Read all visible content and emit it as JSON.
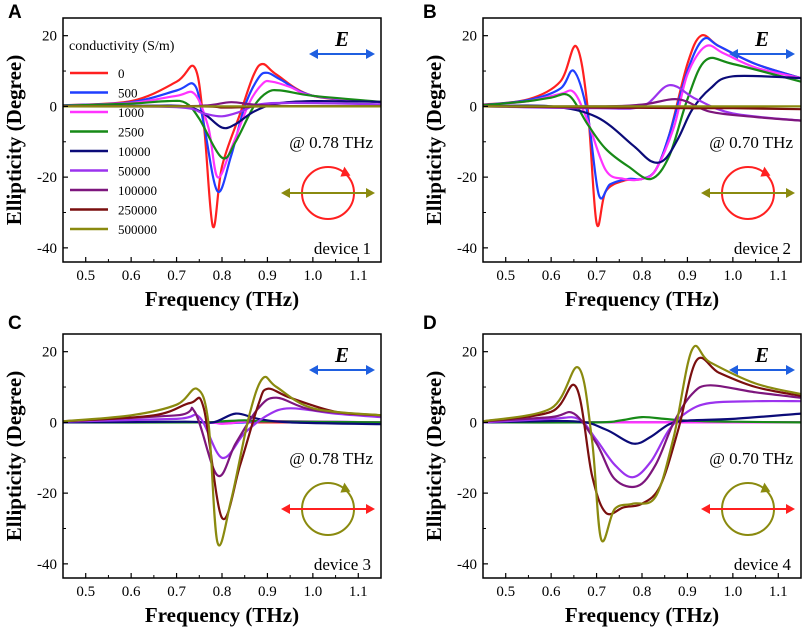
{
  "colors": {
    "0": "#ff2020",
    "500": "#1f3fff",
    "1000": "#ff33ff",
    "2500": "#178a17",
    "10000": "#0b0b78",
    "50000": "#9b33ee",
    "100000": "#7d167d",
    "250000": "#7a0f0f",
    "500000": "#8a8a0f",
    "e_arrow": "#1f5fe0",
    "pol_red": "#ff2020",
    "pol_olive": "#8a8a0f"
  },
  "legend": {
    "title": "conductivity (S/m)",
    "entries": [
      "0",
      "500",
      "1000",
      "2500",
      "10000",
      "50000",
      "100000",
      "250000",
      "500000"
    ]
  },
  "e_label": "E",
  "chart_data": [
    {
      "type": "line",
      "panel": "A",
      "xlabel": "Frequency (THz)",
      "ylabel": "Ellipticity (Degree)",
      "xlim": [
        0.45,
        1.15
      ],
      "ylim": [
        -44,
        25
      ],
      "xticks": [
        "0.5",
        "0.6",
        "0.7",
        "0.8",
        "0.9",
        "1.0",
        "1.1"
      ],
      "yticks": [
        "20",
        "0",
        "-20",
        "-40"
      ],
      "annotation": "@ 0.78 THz",
      "device_label": "device 1",
      "polarization": {
        "circle": "pol_red",
        "line": "pol_olive"
      },
      "series": [
        {
          "name": "0",
          "x": [
            0.45,
            0.6,
            0.7,
            0.74,
            0.76,
            0.78,
            0.8,
            0.84,
            0.87,
            0.89,
            0.92,
            1.0,
            1.15
          ],
          "y": [
            0.3,
            1.5,
            7,
            11,
            -5,
            -34,
            -17,
            -2,
            9,
            12,
            9,
            3,
            1.2
          ]
        },
        {
          "name": "500",
          "x": [
            0.45,
            0.6,
            0.7,
            0.74,
            0.76,
            0.79,
            0.82,
            0.85,
            0.88,
            0.9,
            0.93,
            1.0,
            1.15
          ],
          "y": [
            0.3,
            1.2,
            4.5,
            6,
            -5,
            -24,
            -14,
            0,
            8,
            9.5,
            7.5,
            3,
            1.2
          ]
        },
        {
          "name": "1000",
          "x": [
            0.45,
            0.6,
            0.7,
            0.74,
            0.77,
            0.79,
            0.82,
            0.86,
            0.89,
            0.91,
            0.95,
            1.0,
            1.15
          ],
          "y": [
            0.2,
            1,
            3,
            3.5,
            -6,
            -20,
            -12,
            1,
            6.5,
            7,
            5.5,
            3,
            1.2
          ]
        },
        {
          "name": "2500",
          "x": [
            0.45,
            0.6,
            0.68,
            0.72,
            0.75,
            0.8,
            0.83,
            0.87,
            0.9,
            0.93,
            1.0,
            1.15
          ],
          "y": [
            0.2,
            0.8,
            1.5,
            1,
            -3.5,
            -14.5,
            -10,
            0,
            4,
            4.5,
            3,
            1.3
          ]
        },
        {
          "name": "10000",
          "x": [
            0.45,
            0.65,
            0.72,
            0.76,
            0.8,
            0.83,
            0.87,
            0.92,
            1.0,
            1.15
          ],
          "y": [
            0,
            0.2,
            0,
            -2,
            -6,
            -5,
            -1.5,
            0.8,
            1.5,
            1.3
          ]
        },
        {
          "name": "50000",
          "x": [
            0.45,
            0.7,
            0.76,
            0.8,
            0.84,
            0.88,
            0.95,
            1.15
          ],
          "y": [
            0,
            -0.2,
            -2,
            -2.8,
            -1.5,
            0.5,
            1,
            0.6
          ]
        },
        {
          "name": "100000",
          "x": [
            0.45,
            0.7,
            0.77,
            0.82,
            0.87,
            0.95,
            1.15
          ],
          "y": [
            0,
            0,
            0.3,
            1.2,
            0.5,
            0.1,
            0
          ]
        },
        {
          "name": "250000",
          "x": [
            0.45,
            0.75,
            0.8,
            0.85,
            0.9,
            1.15
          ],
          "y": [
            0,
            0,
            -0.3,
            -0.2,
            0,
            0
          ]
        },
        {
          "name": "500000",
          "x": [
            0.45,
            0.8,
            1.15
          ],
          "y": [
            0,
            0,
            0
          ]
        }
      ]
    },
    {
      "type": "line",
      "panel": "B",
      "xlabel": "Frequency (THz)",
      "ylabel": "Ellipticity (Degree)",
      "xlim": [
        0.45,
        1.15
      ],
      "ylim": [
        -44,
        25
      ],
      "xticks": [
        "0.5",
        "0.6",
        "0.7",
        "0.8",
        "0.9",
        "1.0",
        "1.1"
      ],
      "yticks": [
        "20",
        "0",
        "-20",
        "-40"
      ],
      "annotation": "@ 0.70 THz",
      "device_label": "device 2",
      "polarization": {
        "circle": "pol_red",
        "line": "pol_olive"
      },
      "series": [
        {
          "name": "0",
          "x": [
            0.45,
            0.55,
            0.62,
            0.655,
            0.68,
            0.7,
            0.72,
            0.76,
            0.8,
            0.83,
            0.86,
            0.9,
            0.93,
            0.97,
            1.05,
            1.15
          ],
          "y": [
            0.5,
            2,
            7,
            17,
            0,
            -33,
            -24,
            -21,
            -20.5,
            -18,
            -8,
            12,
            20,
            17,
            12,
            8
          ]
        },
        {
          "name": "500",
          "x": [
            0.45,
            0.55,
            0.62,
            0.65,
            0.68,
            0.705,
            0.73,
            0.77,
            0.8,
            0.83,
            0.86,
            0.9,
            0.935,
            0.97,
            1.05,
            1.15
          ],
          "y": [
            0.4,
            1.8,
            5,
            10,
            -2,
            -25,
            -22,
            -20.5,
            -20.5,
            -18,
            -8,
            10,
            19,
            17,
            12,
            8
          ]
        },
        {
          "name": "1000",
          "x": [
            0.45,
            0.55,
            0.62,
            0.65,
            0.68,
            0.72,
            0.76,
            0.8,
            0.83,
            0.87,
            0.9,
            0.94,
            0.98,
            1.05,
            1.15
          ],
          "y": [
            0.3,
            1.5,
            3.5,
            4,
            -4,
            -18,
            -20.5,
            -20.5,
            -18,
            -6,
            9,
            17,
            15,
            11,
            8
          ]
        },
        {
          "name": "2500",
          "x": [
            0.45,
            0.55,
            0.6,
            0.64,
            0.68,
            0.72,
            0.77,
            0.82,
            0.86,
            0.9,
            0.94,
            1.0,
            1.15
          ],
          "y": [
            0.3,
            1.5,
            2.5,
            3,
            -5,
            -12,
            -17,
            -20.5,
            -14,
            2,
            13,
            12,
            7
          ]
        },
        {
          "name": "10000",
          "x": [
            0.45,
            0.6,
            0.7,
            0.78,
            0.82,
            0.85,
            0.88,
            0.91,
            0.95,
            1.0,
            1.15
          ],
          "y": [
            0,
            0,
            -3,
            -11,
            -15.5,
            -15,
            -9,
            -1,
            5,
            8.5,
            8
          ]
        },
        {
          "name": "50000",
          "x": [
            0.45,
            0.7,
            0.8,
            0.86,
            0.92,
            1.0,
            1.15
          ],
          "y": [
            0,
            -0.5,
            0,
            6,
            2,
            -2,
            -4
          ]
        },
        {
          "name": "100000",
          "x": [
            0.45,
            0.7,
            0.8,
            0.88,
            0.95,
            1.05,
            1.15
          ],
          "y": [
            0,
            0,
            0.5,
            2,
            -1.5,
            -3,
            -4
          ]
        },
        {
          "name": "250000",
          "x": [
            0.45,
            0.7,
            0.9,
            1.0,
            1.15
          ],
          "y": [
            0,
            -0.3,
            -0.5,
            -0.5,
            -0.8
          ]
        },
        {
          "name": "500000",
          "x": [
            0.45,
            0.8,
            1.15
          ],
          "y": [
            0,
            0,
            0
          ]
        }
      ]
    },
    {
      "type": "line",
      "panel": "C",
      "xlabel": "Frequency (THz)",
      "ylabel": "Ellipticity (Degree)",
      "xlim": [
        0.45,
        1.15
      ],
      "ylim": [
        -44,
        25
      ],
      "xticks": [
        "0.5",
        "0.6",
        "0.7",
        "0.8",
        "0.9",
        "1.0",
        "1.1"
      ],
      "yticks": [
        "20",
        "0",
        "-20",
        "-40"
      ],
      "annotation": "@ 0.78 THz",
      "device_label": "device 3",
      "polarization": {
        "circle": "pol_olive",
        "line": "pol_red"
      },
      "series": [
        {
          "name": "0",
          "x": [
            0.45,
            0.8,
            1.15
          ],
          "y": [
            0,
            0,
            0
          ]
        },
        {
          "name": "500",
          "x": [
            0.45,
            0.75,
            0.8,
            0.85,
            0.9,
            1.15
          ],
          "y": [
            0,
            0,
            -0.3,
            0,
            0.3,
            0
          ]
        },
        {
          "name": "1000",
          "x": [
            0.45,
            0.75,
            0.8,
            0.85,
            0.9,
            1.15
          ],
          "y": [
            0,
            0,
            -0.4,
            0.2,
            0.4,
            0
          ]
        },
        {
          "name": "2500",
          "x": [
            0.45,
            0.75,
            0.8,
            0.85,
            0.9,
            1.15
          ],
          "y": [
            0,
            0,
            0.3,
            0.6,
            0.3,
            0
          ]
        },
        {
          "name": "10000",
          "x": [
            0.45,
            0.72,
            0.78,
            0.83,
            0.88,
            0.95,
            1.15
          ],
          "y": [
            0,
            0.2,
            0,
            2.5,
            1,
            0,
            -0.5
          ]
        },
        {
          "name": "50000",
          "x": [
            0.45,
            0.7,
            0.75,
            0.8,
            0.85,
            0.9,
            0.95,
            1.05,
            1.15
          ],
          "y": [
            0.2,
            1,
            1.5,
            -10,
            -3,
            2,
            4,
            2.5,
            1.5
          ]
        },
        {
          "name": "100000",
          "x": [
            0.45,
            0.7,
            0.74,
            0.79,
            0.83,
            0.88,
            0.92,
            1.0,
            1.15
          ],
          "y": [
            0.3,
            2,
            3,
            -15,
            -6,
            4,
            7,
            3.5,
            2
          ]
        },
        {
          "name": "250000",
          "x": [
            0.45,
            0.65,
            0.73,
            0.76,
            0.8,
            0.84,
            0.88,
            0.9,
            0.95,
            1.05,
            1.15
          ],
          "y": [
            0.3,
            2,
            5.5,
            4,
            -27,
            -12,
            5,
            9.5,
            7,
            3,
            2
          ]
        },
        {
          "name": "500000",
          "x": [
            0.45,
            0.6,
            0.7,
            0.745,
            0.77,
            0.79,
            0.82,
            0.86,
            0.89,
            0.92,
            1.0,
            1.15
          ],
          "y": [
            0.3,
            2,
            5,
            9.5,
            0,
            -34,
            -22,
            2,
            12.5,
            10,
            4,
            2
          ]
        }
      ]
    },
    {
      "type": "line",
      "panel": "D",
      "xlabel": "Frequency (THz)",
      "ylabel": "Ellipticity (Degree)",
      "xlim": [
        0.45,
        1.15
      ],
      "ylim": [
        -44,
        25
      ],
      "xticks": [
        "0.5",
        "0.6",
        "0.7",
        "0.8",
        "0.9",
        "1.0",
        "1.1"
      ],
      "yticks": [
        "20",
        "0",
        "-20",
        "-40"
      ],
      "annotation": "@ 0.70 THz",
      "device_label": "device 4",
      "polarization": {
        "circle": "pol_olive",
        "line": "pol_red"
      },
      "series": [
        {
          "name": "0",
          "x": [
            0.45,
            0.8,
            1.15
          ],
          "y": [
            0,
            0,
            0
          ]
        },
        {
          "name": "500",
          "x": [
            0.45,
            0.8,
            1.15
          ],
          "y": [
            0,
            0,
            0
          ]
        },
        {
          "name": "1000",
          "x": [
            0.45,
            0.8,
            1.15
          ],
          "y": [
            0,
            0,
            0
          ]
        },
        {
          "name": "2500",
          "x": [
            0.45,
            0.7,
            0.75,
            0.8,
            0.85,
            0.9,
            1.0,
            1.15
          ],
          "y": [
            0,
            0,
            0.5,
            1.5,
            1,
            0.5,
            0.2,
            0
          ]
        },
        {
          "name": "10000",
          "x": [
            0.45,
            0.65,
            0.72,
            0.78,
            0.82,
            0.86,
            0.9,
            1.0,
            1.15
          ],
          "y": [
            0,
            0.3,
            -2,
            -6,
            -4,
            -0.5,
            0.5,
            1,
            2.5
          ]
        },
        {
          "name": "50000",
          "x": [
            0.45,
            0.6,
            0.66,
            0.7,
            0.74,
            0.78,
            0.82,
            0.86,
            0.9,
            0.95,
            1.05,
            1.15
          ],
          "y": [
            0,
            1,
            1,
            -5,
            -12,
            -15.5,
            -11,
            -2,
            3,
            5.5,
            6,
            6
          ]
        },
        {
          "name": "100000",
          "x": [
            0.45,
            0.6,
            0.65,
            0.7,
            0.74,
            0.79,
            0.83,
            0.87,
            0.91,
            0.95,
            1.05,
            1.15
          ],
          "y": [
            0.3,
            1.5,
            2.5,
            -6,
            -16,
            -18,
            -12,
            0,
            8,
            10.5,
            8.5,
            7
          ]
        },
        {
          "name": "250000",
          "x": [
            0.45,
            0.6,
            0.655,
            0.69,
            0.72,
            0.76,
            0.8,
            0.84,
            0.88,
            0.92,
            0.97,
            1.05,
            1.15
          ],
          "y": [
            0.3,
            3,
            10,
            -15,
            -25.5,
            -24,
            -23,
            -18,
            -2,
            17.5,
            14,
            10,
            7.5
          ]
        },
        {
          "name": "500000",
          "x": [
            0.45,
            0.6,
            0.66,
            0.69,
            0.71,
            0.74,
            0.78,
            0.83,
            0.87,
            0.91,
            0.95,
            1.05,
            1.15
          ],
          "y": [
            0.3,
            4,
            15.5,
            -5,
            -33,
            -24.5,
            -23,
            -21,
            -4,
            20.5,
            17,
            11,
            8
          ]
        }
      ]
    }
  ]
}
